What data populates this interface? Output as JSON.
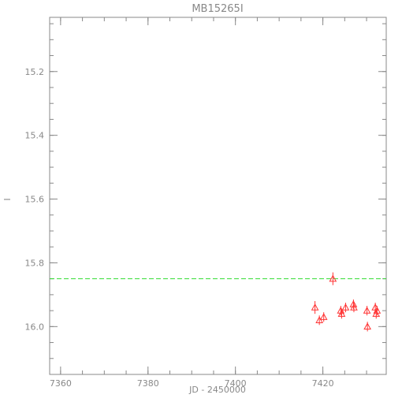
{
  "chart_data": {
    "type": "scatter",
    "title": "MB15265I",
    "xlabel": "JD - 2450000",
    "ylabel": "I",
    "xlim": [
      7357.5,
      7434.5
    ],
    "ylim": [
      16.15,
      15.03
    ],
    "y_inverted": true,
    "x_ticks": [
      7360,
      7380,
      7400,
      7420
    ],
    "x_tick_labels": [
      "7360",
      "7380",
      "7400",
      "7420"
    ],
    "x_minor_step": 5,
    "y_ticks": [
      15.2,
      15.4,
      15.6,
      15.8,
      16.0
    ],
    "y_tick_labels": [
      "15.2",
      "15.4",
      "15.6",
      "15.8",
      "16.0"
    ],
    "y_minor_step": 0.05,
    "grid": false,
    "colors": {
      "axes": "#888888",
      "data": "#ff3333",
      "baseline": "#33dd33"
    },
    "series": [
      {
        "marker": "triangle",
        "points": [
          {
            "x": 7418.2,
            "y": 15.94,
            "err": 0.02
          },
          {
            "x": 7419.2,
            "y": 15.98,
            "err": 0.015
          },
          {
            "x": 7420.2,
            "y": 15.97,
            "err": 0.015
          },
          {
            "x": 7422.3,
            "y": 15.85,
            "err": 0.02
          },
          {
            "x": 7424.1,
            "y": 15.95,
            "err": 0.015
          },
          {
            "x": 7424.3,
            "y": 15.96,
            "err": 0.015
          },
          {
            "x": 7425.2,
            "y": 15.94,
            "err": 0.015
          },
          {
            "x": 7427.0,
            "y": 15.93,
            "err": 0.015
          },
          {
            "x": 7427.1,
            "y": 15.94,
            "err": 0.015
          },
          {
            "x": 7430.1,
            "y": 15.95,
            "err": 0.015
          },
          {
            "x": 7430.2,
            "y": 16.0,
            "err": 0.015
          },
          {
            "x": 7432.0,
            "y": 15.94,
            "err": 0.015
          },
          {
            "x": 7432.2,
            "y": 15.96,
            "err": 0.015
          },
          {
            "x": 7432.4,
            "y": 15.95,
            "err": 0.015
          }
        ]
      }
    ],
    "baseline": {
      "y": 15.85,
      "style": "dashed"
    }
  }
}
